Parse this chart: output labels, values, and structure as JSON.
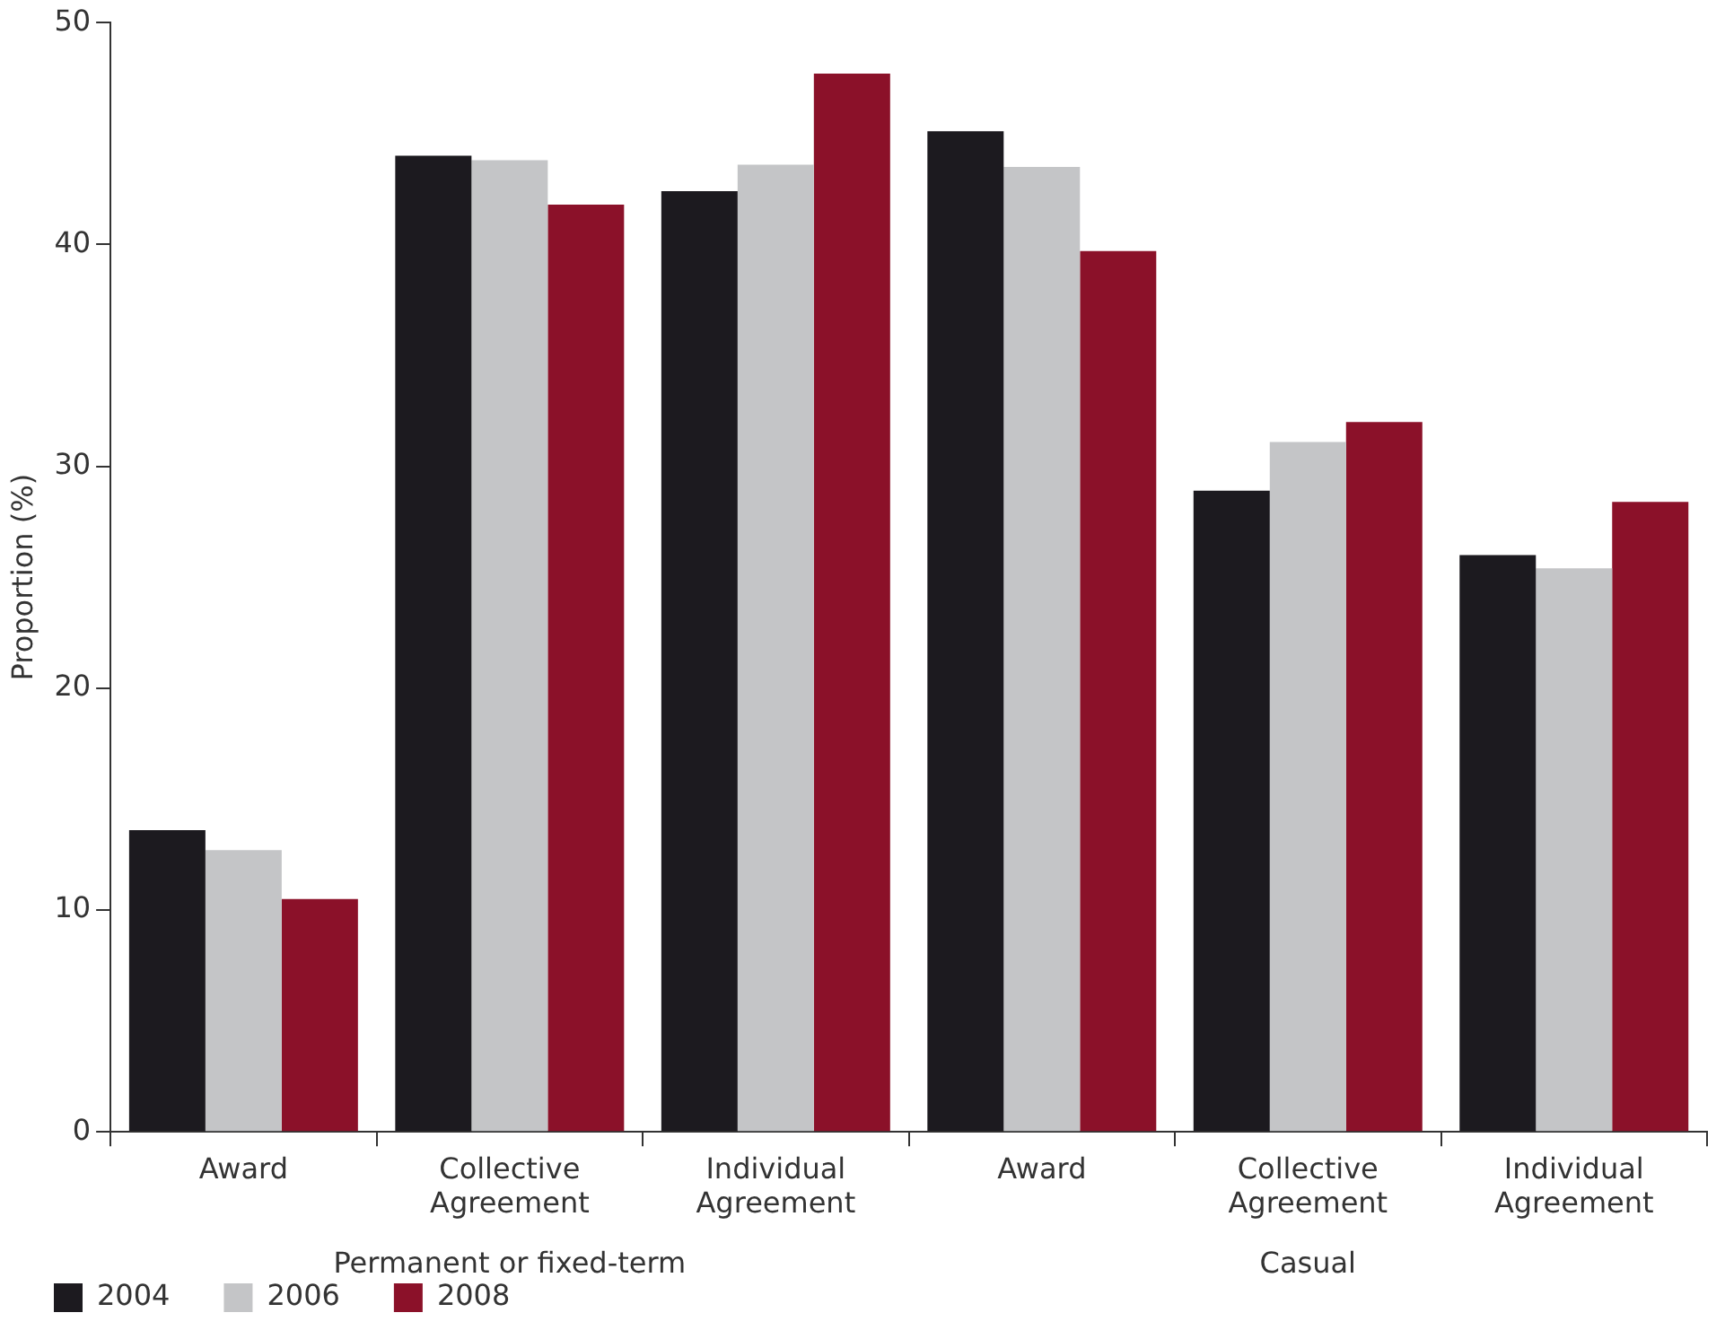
{
  "chart_data": {
    "type": "bar",
    "ylabel": "Proportion (%)",
    "categories": [
      "Award",
      "Collective Agreement",
      "Individual Agreement",
      "Award",
      "Collective Agreement",
      "Individual Agreement"
    ],
    "series": [
      {
        "name": "2004",
        "color": "#1c1a1f",
        "values": [
          13.6,
          44.0,
          42.4,
          45.1,
          28.9,
          26.0
        ]
      },
      {
        "name": "2006",
        "color": "#c4c5c7",
        "values": [
          12.7,
          43.8,
          43.6,
          43.5,
          31.1,
          25.4
        ]
      },
      {
        "name": "2008",
        "color": "#8b1129",
        "values": [
          10.5,
          41.8,
          47.7,
          39.7,
          32.0,
          28.4
        ]
      }
    ],
    "annotations": [
      "Permanent or fixed-term",
      "Casual"
    ],
    "ylim": [
      0,
      50
    ],
    "yticks": [
      0,
      10,
      20,
      30,
      40,
      50
    ],
    "grid": false,
    "legend": "bottom left"
  }
}
